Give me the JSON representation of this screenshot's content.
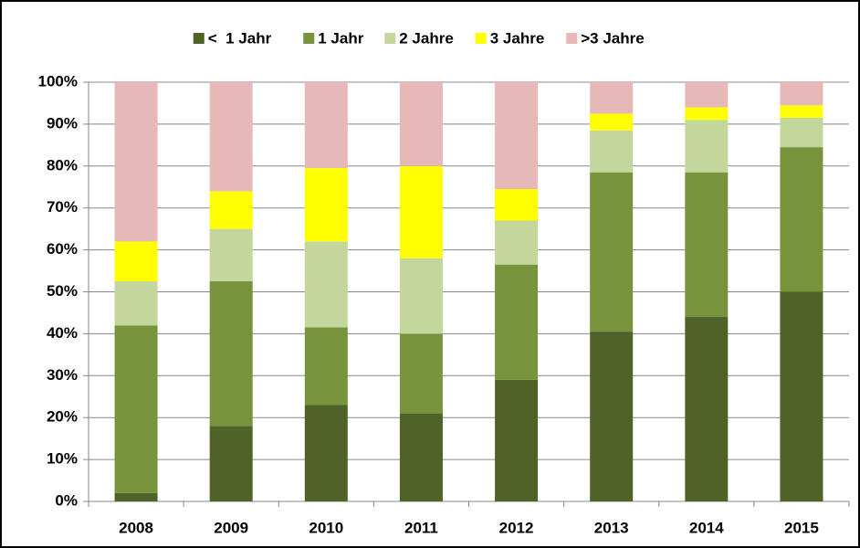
{
  "chart_data": {
    "type": "stacked_bar",
    "categories": [
      "2008",
      "2009",
      "2010",
      "2011",
      "2012",
      "2013",
      "2014",
      "2015"
    ],
    "series": [
      {
        "name": "<  1 Jahr",
        "color": "#4f6228",
        "values": [
          2,
          18,
          23,
          21,
          29,
          40.5,
          44,
          50
        ]
      },
      {
        "name": "1 Jahr",
        "color": "#77933c",
        "values": [
          40,
          34.5,
          18.5,
          19,
          27.5,
          38,
          34.5,
          34.5
        ]
      },
      {
        "name": "2 Jahre",
        "color": "#c3d69b",
        "values": [
          10.5,
          12.5,
          20.5,
          18,
          10.5,
          10,
          12.5,
          7
        ]
      },
      {
        "name": "3 Jahre",
        "color": "#ffff00",
        "values": [
          9.5,
          9,
          17.5,
          22,
          7.5,
          4,
          3,
          3
        ]
      },
      {
        "name": ">3 Jahre",
        "color": "#e6b9b8",
        "values": [
          38,
          26,
          20.5,
          20,
          25.5,
          7.5,
          6,
          5.5
        ]
      }
    ],
    "ylim": [
      0,
      100
    ],
    "yticks": [
      {
        "value": 0,
        "label": "0%"
      },
      {
        "value": 10,
        "label": "10%"
      },
      {
        "value": 20,
        "label": "20%"
      },
      {
        "value": 30,
        "label": "30%"
      },
      {
        "value": 40,
        "label": "40%"
      },
      {
        "value": 50,
        "label": "50%"
      },
      {
        "value": 60,
        "label": "60%"
      },
      {
        "value": 70,
        "label": "70%"
      },
      {
        "value": 80,
        "label": "80%"
      },
      {
        "value": 90,
        "label": "90%"
      },
      {
        "value": 100,
        "label": "100%"
      }
    ],
    "grid": true,
    "legend": "top"
  }
}
